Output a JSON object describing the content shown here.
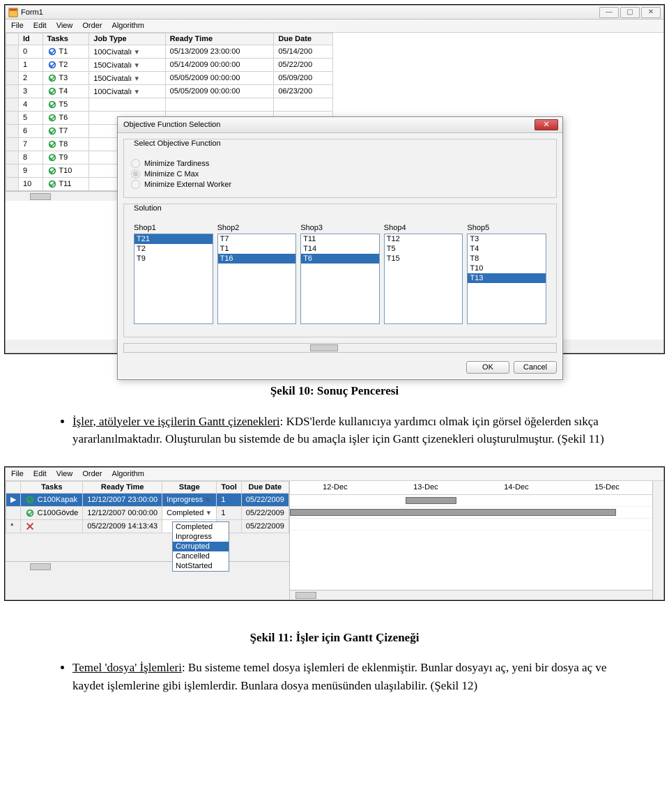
{
  "form1": {
    "title": "Form1",
    "menus": [
      "File",
      "Edit",
      "View",
      "Order",
      "Algorithm"
    ],
    "columns": [
      "",
      "Id",
      "Tasks",
      "Job Type",
      "Ready Time",
      "Due Date"
    ],
    "job_types": [
      "100Civatalı",
      "150Civatalı"
    ],
    "rows": [
      {
        "id": "0",
        "task": "T1",
        "icon": "blue",
        "job": "100Civatalı",
        "ready": "05/13/2009 23:00:00",
        "due": "05/14/200"
      },
      {
        "id": "1",
        "task": "T2",
        "icon": "blue",
        "job": "150Civatalı",
        "ready": "05/14/2009 00:00:00",
        "due": "05/22/200"
      },
      {
        "id": "2",
        "task": "T3",
        "icon": "green",
        "job": "150Civatalı",
        "ready": "05/05/2009 00:00:00",
        "due": "05/09/200"
      },
      {
        "id": "3",
        "task": "T4",
        "icon": "green",
        "job": "100Civatalı",
        "ready": "05/05/2009 00:00:00",
        "due": "06/23/200"
      },
      {
        "id": "4",
        "task": "T5",
        "icon": "green",
        "job": "",
        "ready": "",
        "due": ""
      },
      {
        "id": "5",
        "task": "T6",
        "icon": "green",
        "job": "",
        "ready": "",
        "due": ""
      },
      {
        "id": "6",
        "task": "T7",
        "icon": "green",
        "job": "",
        "ready": "",
        "due": ""
      },
      {
        "id": "7",
        "task": "T8",
        "icon": "green",
        "job": "",
        "ready": "",
        "due": ""
      },
      {
        "id": "8",
        "task": "T9",
        "icon": "green",
        "job": "",
        "ready": "",
        "due": ""
      },
      {
        "id": "9",
        "task": "T10",
        "icon": "green",
        "job": "",
        "ready": "",
        "due": ""
      },
      {
        "id": "10",
        "task": "T11",
        "icon": "green",
        "job": "",
        "ready": "",
        "due": ""
      }
    ]
  },
  "dialog": {
    "title": "Objective Function Selection",
    "group_label": "Select Objective Function",
    "radios": [
      "Minimize Tardiness",
      "Minimize C Max",
      "Minimize External Worker"
    ],
    "radio_selected": 1,
    "solution_label": "Solution",
    "shops": [
      {
        "label": "Shop1",
        "items": [
          "T21",
          "T2",
          "T9"
        ],
        "sel": 0
      },
      {
        "label": "Shop2",
        "items": [
          "T7",
          "T1",
          "T16"
        ],
        "sel": 2
      },
      {
        "label": "Shop3",
        "items": [
          "T11",
          "T14",
          "T6"
        ],
        "sel": 2
      },
      {
        "label": "Shop4",
        "items": [
          "T12",
          "T5",
          "T15"
        ],
        "sel": -1
      },
      {
        "label": "Shop5",
        "items": [
          "T3",
          "T4",
          "T8",
          "T10",
          "T13"
        ],
        "sel": 4
      }
    ],
    "ok": "OK",
    "cancel": "Cancel"
  },
  "narrative1": {
    "caption": "Şekil 10: Sonuç Penceresi",
    "bullet_head": "İşler, atölyeler ve işçilerin Gantt çizenekleri",
    "bullet_tail": ": KDS'lerde kullanıcıya yardımcı olmak için görsel öğelerden sıkça yararlanılmaktadır. Oluşturulan bu sistemde de bu amaçla işler için Gantt çizenekleri oluşturulmuştur. (Şekil 11)"
  },
  "gantt_app": {
    "menus": [
      "File",
      "Edit",
      "View",
      "Order",
      "Algorithm"
    ],
    "columns": [
      "",
      "Tasks",
      "Ready Time",
      "Stage",
      "Tool",
      "Due Date"
    ],
    "dates": [
      "12-Dec",
      "13-Dec",
      "14-Dec",
      "15-Dec"
    ],
    "rows": [
      {
        "marker": "▶",
        "icon": "green",
        "task": "C100Kapak",
        "ready": "12/12/2007 23:00:00",
        "stage": "Inprogress",
        "tool": "1",
        "due": "05/22/2009",
        "selected": true,
        "bar_left": 0.32,
        "bar_w": 0.14
      },
      {
        "marker": "",
        "icon": "green",
        "task": "C100Gövde",
        "ready": "12/12/2007 00:00:00",
        "stage": "Completed",
        "tool": "1",
        "due": "05/22/2009",
        "selected": false,
        "bar_left": 0.0,
        "bar_w": 0.9
      },
      {
        "marker": "*",
        "icon": "red",
        "task": "",
        "ready": "05/22/2009 14:13:43",
        "stage": "",
        "tool": "",
        "due": "05/22/2009",
        "selected": false
      }
    ],
    "stage_options": [
      "Completed",
      "Inprogress",
      "Corrupted",
      "Cancelled",
      "NotStarted"
    ],
    "stage_selected_index": 2
  },
  "narrative2": {
    "caption": "Şekil 11: İşler için Gantt Çizeneği",
    "bullet_head": "Temel 'dosya' İşlemleri",
    "bullet_tail": ": Bu sisteme temel dosya işlemleri de eklenmiştir. Bunlar dosyayı aç, yeni bir dosya aç ve kaydet işlemlerine gibi işlemlerdir. Bunlara dosya menüsünden ulaşılabilir. (Şekil 12)"
  }
}
